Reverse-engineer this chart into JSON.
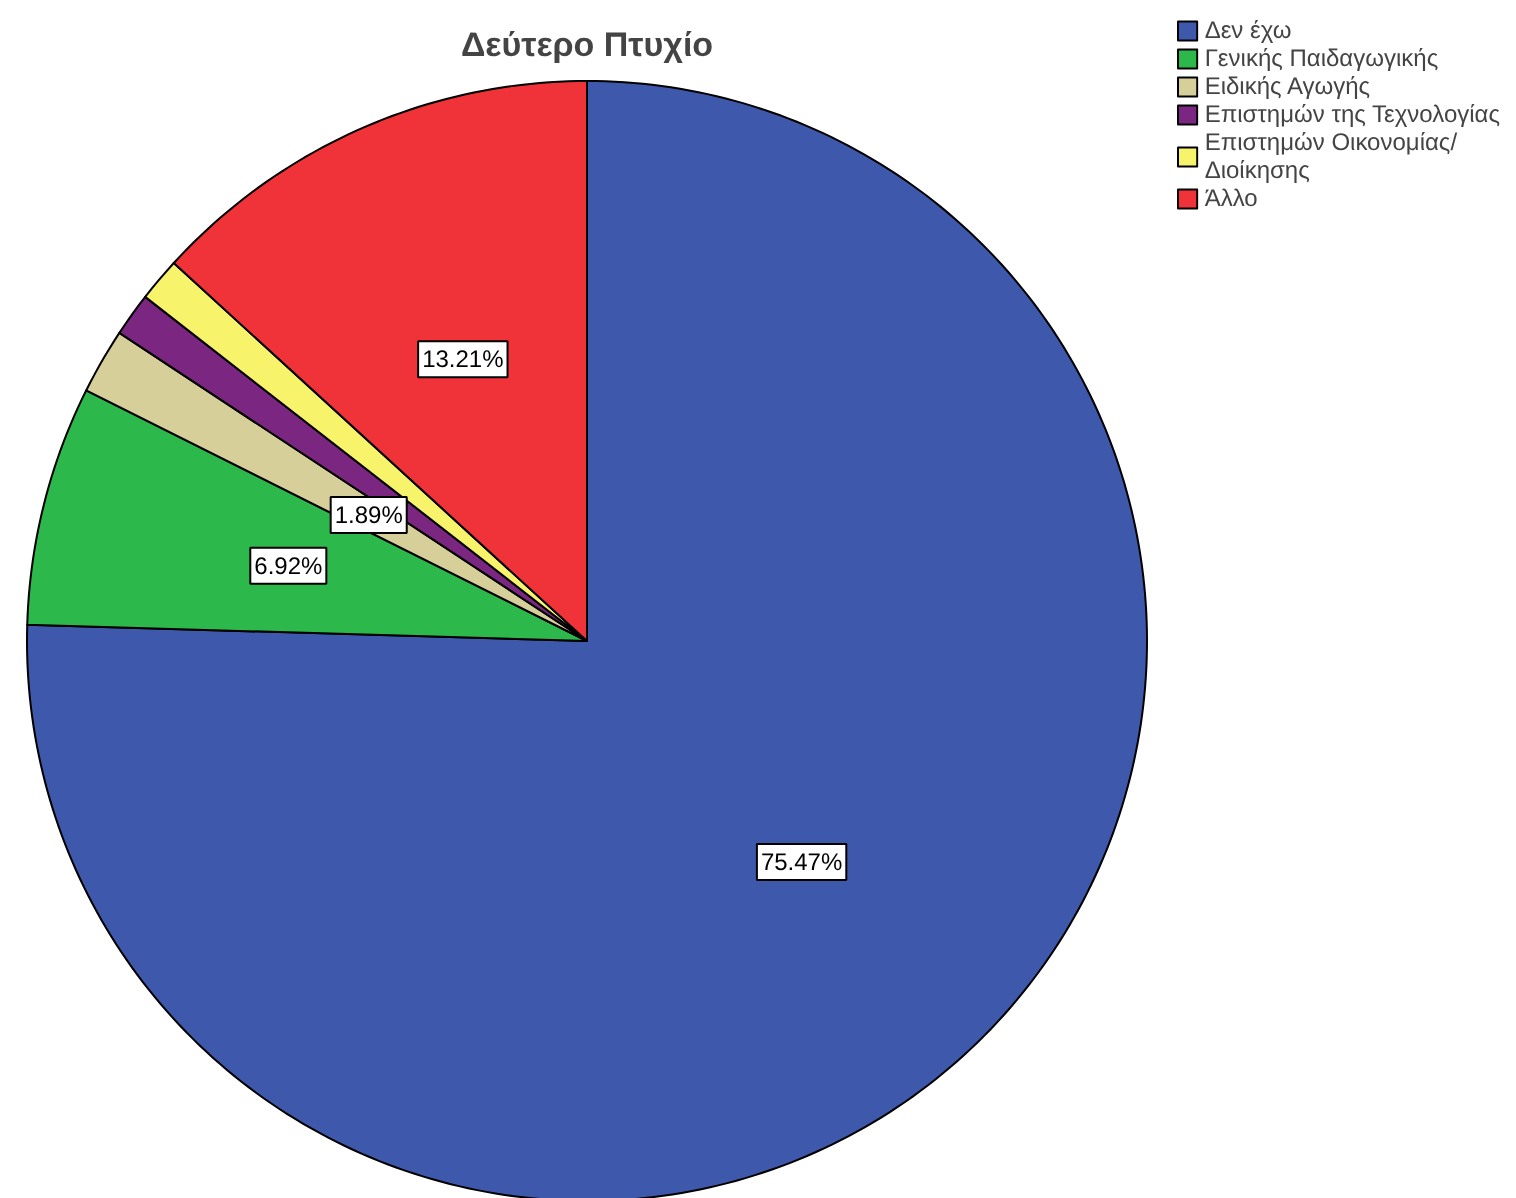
{
  "chart_data": {
    "type": "pie",
    "title": "Δεύτερο Πτυχίο",
    "categories": [
      "Δεν έχω",
      "Γενικής Παιδαγωγικής",
      "Ειδικής Αγωγής",
      "Επιστημών της Τεχνολογίας",
      "Επιστημών Οικονομίας/\nΔιοίκησης",
      "Άλλο"
    ],
    "values": [
      75.47,
      6.92,
      1.89,
      1.26,
      1.26,
      13.21
    ],
    "value_labels": [
      "75.47%",
      "6.92%",
      "1.89%",
      null,
      null,
      "13.21%"
    ],
    "colors": [
      "#3e58ac",
      "#2db84b",
      "#d6cf9a",
      "#7b2782",
      "#f7f36a",
      "#ef3338"
    ],
    "legend": "top right"
  }
}
